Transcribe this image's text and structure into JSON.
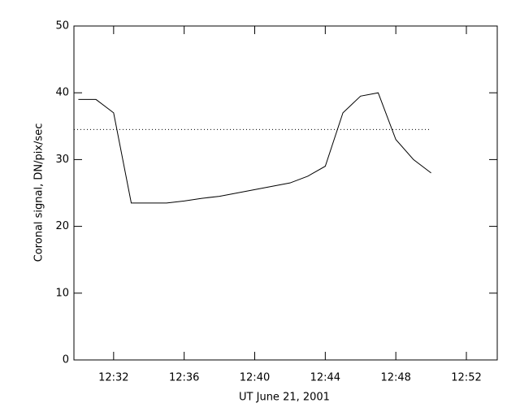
{
  "chart_data": {
    "type": "line",
    "xlabel": "UT June 21, 2001",
    "ylabel": "Coronal signal, DN/pix/sec",
    "x": [
      "12:30",
      "12:31",
      "12:32",
      "12:33",
      "12:34",
      "12:35",
      "12:36",
      "12:37",
      "12:38",
      "12:39",
      "12:40",
      "12:41",
      "12:42",
      "12:43",
      "12:44",
      "12:45",
      "12:46",
      "12:47",
      "12:48",
      "12:49",
      "12:50"
    ],
    "series": [
      {
        "color": "#000000",
        "values": [
          39,
          39,
          37,
          23.5,
          23.5,
          23.5,
          23.8,
          24.2,
          24.5,
          25,
          25.5,
          26,
          26.5,
          27.5,
          29,
          37,
          39.5,
          40,
          33,
          30,
          28
        ]
      }
    ],
    "reference_line": 34.5,
    "xlim": [
      "12:29:45",
      "12:53:45"
    ],
    "xticks": [
      "12:32",
      "12:36",
      "12:40",
      "12:44",
      "12:48",
      "12:52"
    ],
    "ylim": [
      0,
      50
    ],
    "yticks": [
      0,
      10,
      20,
      30,
      40,
      50
    ]
  }
}
